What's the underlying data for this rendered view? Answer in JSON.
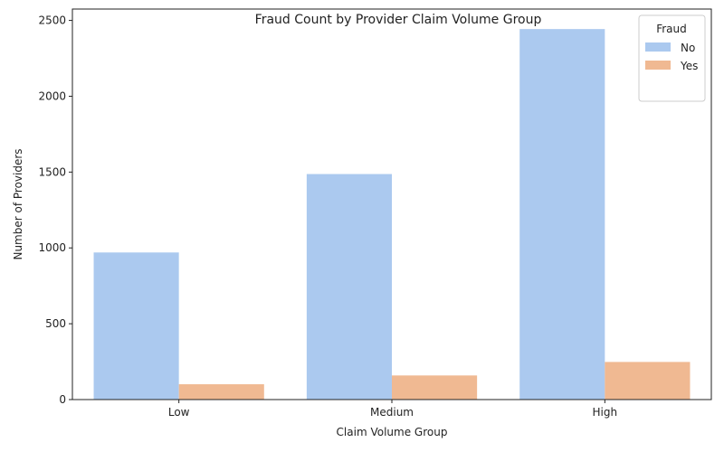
{
  "chart_data": {
    "type": "bar",
    "title": "Fraud Count by Provider Claim Volume Group",
    "xlabel": "Claim Volume Group",
    "ylabel": "Number of Providers",
    "categories": [
      "Low",
      "Medium",
      "High"
    ],
    "series": [
      {
        "name": "No",
        "values": [
          970,
          1487,
          2443
        ],
        "color": "#abc9ef"
      },
      {
        "name": "Yes",
        "values": [
          101,
          159,
          248
        ],
        "color": "#f0b992"
      }
    ],
    "ylim": [
      0,
      2575
    ],
    "yticks": [
      0,
      500,
      1000,
      1500,
      2000,
      2500
    ],
    "legend": {
      "title": "Fraud",
      "placement": "top-right"
    },
    "grid": false
  }
}
